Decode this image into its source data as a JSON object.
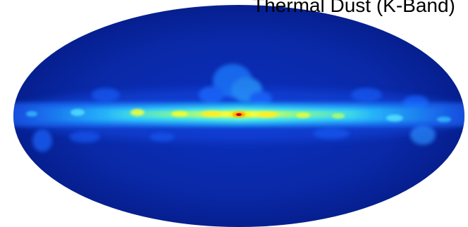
{
  "figure": {
    "title": "Thermal Dust (K-Band)"
  }
}
